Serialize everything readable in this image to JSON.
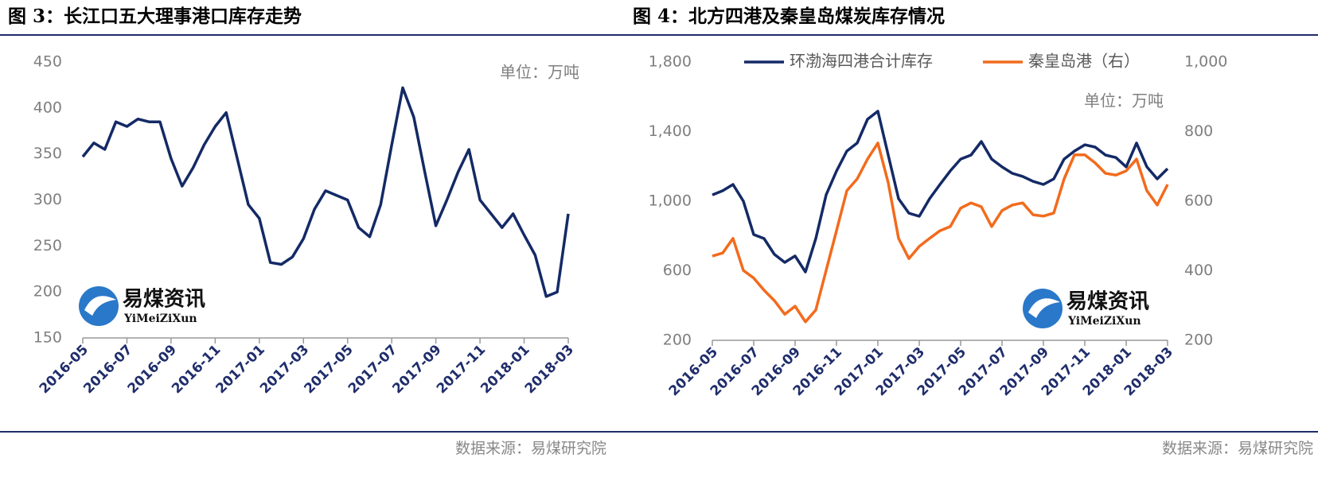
{
  "chart_data": [
    {
      "type": "line",
      "title": "图 3：长江口五大理事港口库存走势",
      "unit": "单位：万吨",
      "source": "数据来源：易煤研究院",
      "logo": {
        "name": "易煤资讯",
        "subtitle": "YiMeiZiXun"
      },
      "categories": [
        "2016-05",
        null,
        null,
        null,
        "2016-07",
        null,
        null,
        null,
        "2016-09",
        null,
        null,
        null,
        "2016-11",
        null,
        null,
        null,
        "2017-01",
        null,
        null,
        null,
        "2017-03",
        null,
        null,
        null,
        "2017-05",
        null,
        null,
        null,
        "2017-07",
        null,
        null,
        null,
        "2017-09",
        null,
        null,
        null,
        "2017-11",
        null,
        null,
        null,
        "2018-01",
        null,
        null,
        null,
        "2018-03"
      ],
      "series": [
        {
          "name": null,
          "color": "#142a66",
          "values": [
            347,
            362,
            355,
            385,
            380,
            388,
            385,
            385,
            345,
            315,
            335,
            360,
            380,
            395,
            345,
            295,
            280,
            232,
            230,
            238,
            258,
            290,
            310,
            305,
            300,
            270,
            260,
            295,
            360,
            422,
            390,
            330,
            272,
            300,
            330,
            355,
            300,
            285,
            270,
            285,
            262,
            240,
            195,
            200,
            285
          ]
        }
      ],
      "ylim": [
        150,
        450
      ],
      "yticks": [
        150,
        200,
        250,
        300,
        350,
        400,
        450
      ]
    },
    {
      "type": "line",
      "title": "图 4：北方四港及秦皇岛煤炭库存情况",
      "unit": "单位：万吨",
      "source": "数据来源：易煤研究院",
      "logo": {
        "name": "易煤资讯",
        "subtitle": "YiMeiZiXun"
      },
      "categories": [
        "2016-05",
        null,
        null,
        null,
        "2016-07",
        null,
        null,
        null,
        "2016-09",
        null,
        null,
        null,
        "2016-11",
        null,
        null,
        null,
        "2017-01",
        null,
        null,
        null,
        "2017-03",
        null,
        null,
        null,
        "2017-05",
        null,
        null,
        null,
        "2017-07",
        null,
        null,
        null,
        "2017-09",
        null,
        null,
        null,
        "2017-11",
        null,
        null,
        null,
        "2018-01",
        null,
        null,
        null,
        "2018-03"
      ],
      "series": [
        {
          "name": "环渤海四港合计库存",
          "color": "#142a66",
          "values": [
            1036,
            1060,
            1096,
            1000,
            808,
            785,
            694,
            648,
            685,
            593,
            785,
            1036,
            1173,
            1288,
            1334,
            1471,
            1517,
            1265,
            1014,
            931,
            913,
            1014,
            1096,
            1174,
            1242,
            1265,
            1343,
            1242,
            1197,
            1160,
            1142,
            1114,
            1096,
            1128,
            1242,
            1288,
            1324,
            1311,
            1265,
            1251,
            1197,
            1334,
            1197,
            1128,
            1187
          ]
        },
        {
          "name": "秦皇岛港（右）",
          "color": "#f26b1d",
          "axis": "y2",
          "values": [
            442,
            451,
            493,
            401,
            379,
            344,
            314,
            275,
            298,
            253,
            287,
            401,
            515,
            630,
            664,
            721,
            767,
            653,
            493,
            435,
            470,
            493,
            515,
            527,
            580,
            595,
            584,
            527,
            573,
            589,
            595,
            561,
            557,
            566,
            664,
            733,
            733,
            710,
            680,
            675,
            687,
            721,
            630,
            589,
            648
          ]
        }
      ],
      "ylim": [
        200,
        1800
      ],
      "yticks": [
        200,
        600,
        {
          "value": 1000,
          "label": "1,000"
        },
        {
          "value": 1400,
          "label": "1,400"
        },
        {
          "value": 1800,
          "label": "1,800"
        }
      ],
      "y2lim": [
        200,
        1000
      ],
      "y2ticks": [
        200,
        400,
        600,
        800,
        {
          "value": 1000,
          "label": "1,000"
        }
      ],
      "legend": "top"
    }
  ]
}
